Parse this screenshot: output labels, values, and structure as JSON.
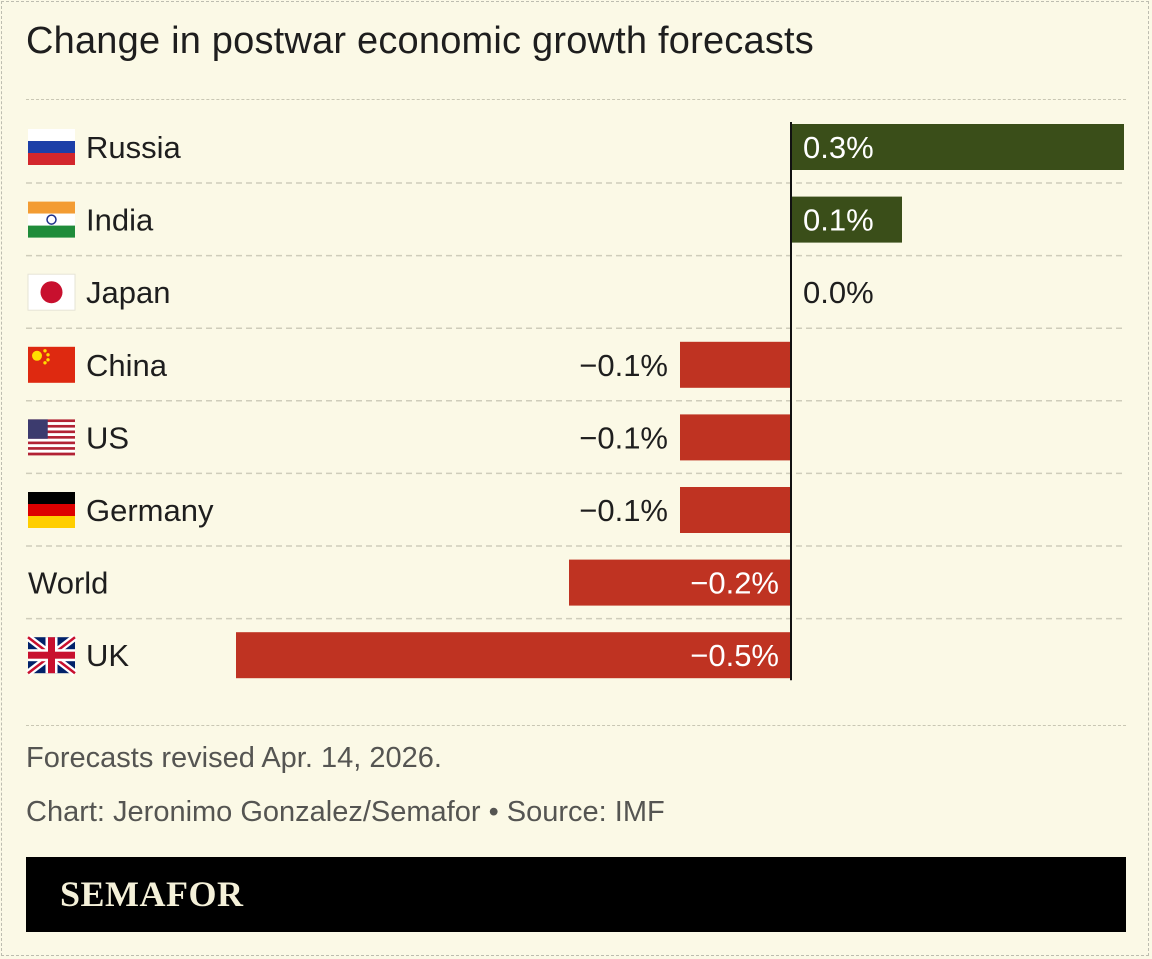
{
  "title": "Change in postwar economic growth forecasts",
  "chart_data": {
    "type": "bar",
    "orientation": "horizontal",
    "categories": [
      "Russia",
      "India",
      "Japan",
      "China",
      "US",
      "Germany",
      "World",
      "UK"
    ],
    "values": [
      0.3,
      0.1,
      0.0,
      -0.1,
      -0.1,
      -0.1,
      -0.2,
      -0.5
    ],
    "data_labels": [
      "0.3%",
      "0.1%",
      "0.0%",
      "−0.1%",
      "−0.1%",
      "−0.1%",
      "−0.2%",
      "−0.5%"
    ],
    "flags": [
      "russia-flag",
      "india-flag",
      "japan-flag",
      "china-flag",
      "us-flag",
      "germany-flag",
      "",
      "uk-flag"
    ],
    "xlim": [
      -0.5,
      0.3
    ],
    "unit": "%",
    "colors": {
      "positive": "#3a4e19",
      "negative": "#bf3322",
      "zero_line": "#111111"
    },
    "grid": "dashed row separators",
    "title": "Change in postwar economic growth forecasts"
  },
  "notes": {
    "revised": "Forecasts revised Apr. 14, 2026.",
    "credit": "Chart: Jeronimo Gonzalez/Semafor • Source: IMF"
  },
  "brand": "SEMAFOR"
}
